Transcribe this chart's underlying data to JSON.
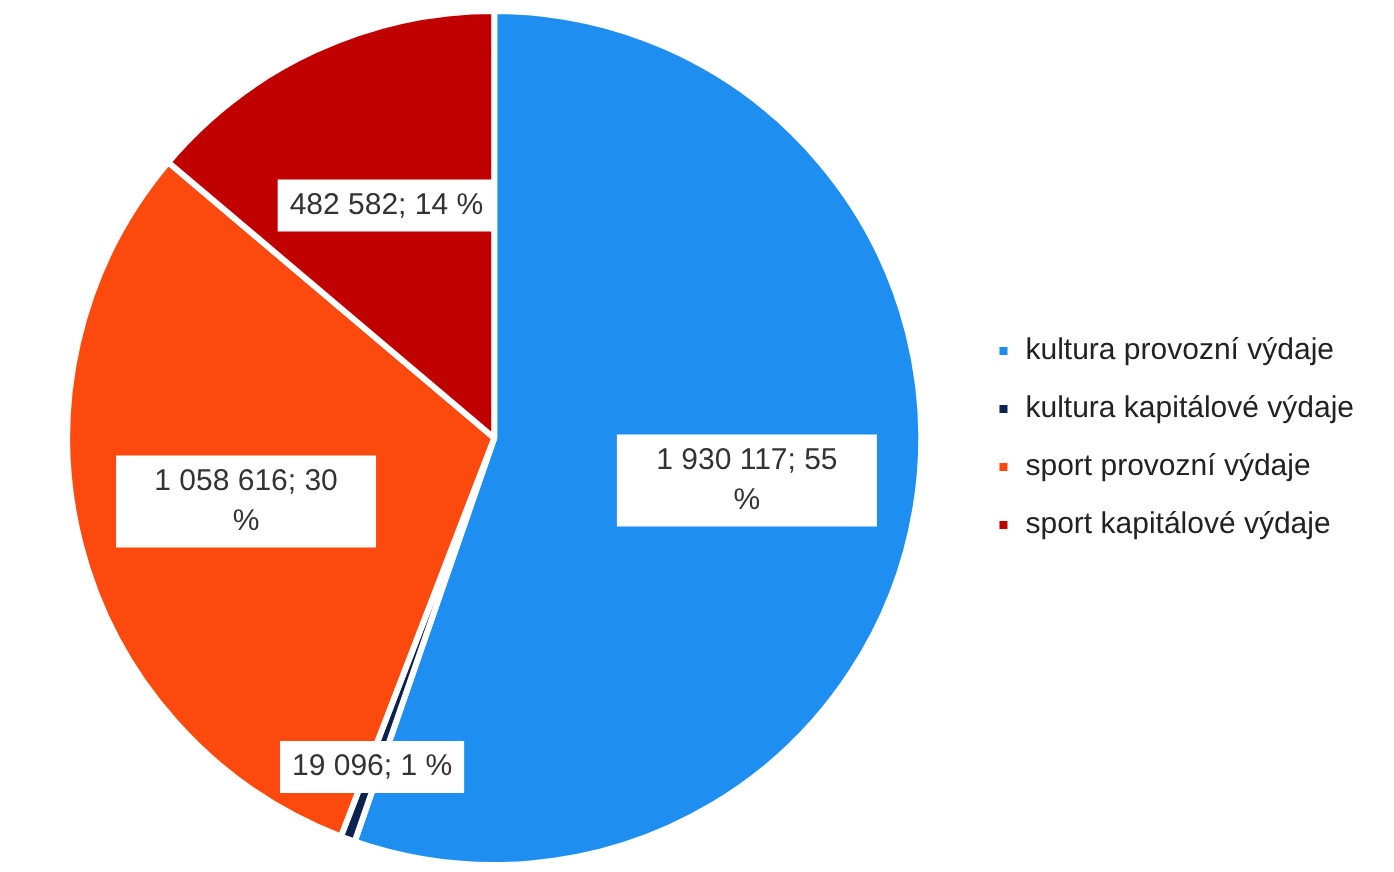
{
  "chart_data": {
    "type": "pie",
    "categories": [
      "kultura provozní výdaje",
      "kultura kapitálové výdaje",
      "sport provozní výdaje",
      "sport kapitálové výdaje"
    ],
    "values": [
      1930117,
      19096,
      1058616,
      482582
    ],
    "colors": [
      "#1e8ff0",
      "#0c2350",
      "#fc4a0f",
      "#c00000"
    ],
    "value_labels": [
      "1 930 117; 55 %",
      "19 096; 1 %",
      "1 058 616; 30 %",
      "482 582; 14 %"
    ],
    "legend": "right"
  }
}
